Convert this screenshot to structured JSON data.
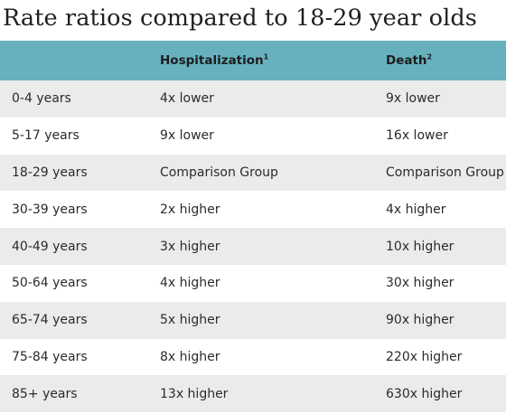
{
  "title": "Rate ratios compared to 18-29 year olds",
  "table": {
    "headers": [
      {
        "label": "",
        "sup": ""
      },
      {
        "label": "Hospitalization",
        "sup": "1"
      },
      {
        "label": "Death",
        "sup": "2"
      }
    ],
    "rows": [
      {
        "age": "0-4 years",
        "hospitalization": "4x lower",
        "death": "9x lower"
      },
      {
        "age": "5-17 years",
        "hospitalization": "9x lower",
        "death": "16x lower"
      },
      {
        "age": "18-29 years",
        "hospitalization": "Comparison Group",
        "death": "Comparison Group"
      },
      {
        "age": "30-39 years",
        "hospitalization": "2x higher",
        "death": "4x higher"
      },
      {
        "age": "40-49 years",
        "hospitalization": "3x higher",
        "death": "10x higher"
      },
      {
        "age": "50-64 years",
        "hospitalization": "4x higher",
        "death": "30x higher"
      },
      {
        "age": "65-74 years",
        "hospitalization": "5x higher",
        "death": "90x higher"
      },
      {
        "age": "75-84 years",
        "hospitalization": "8x higher",
        "death": "220x higher"
      },
      {
        "age": "85+ years",
        "hospitalization": "13x higher",
        "death": "630x higher"
      }
    ]
  },
  "colors": {
    "header_background": "#67b1bf",
    "stripe_background": "#ebebeb",
    "row_background": "#ffffff"
  }
}
